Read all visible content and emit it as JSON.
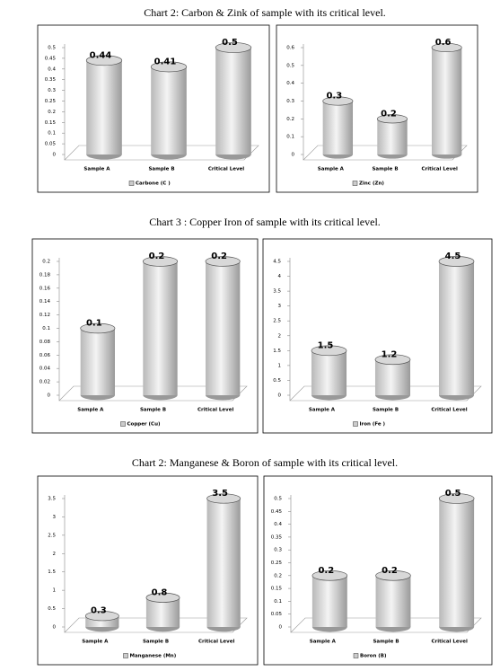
{
  "captions": [
    "Chart 2: Carbon & Zink of sample with its critical level.",
    "Chart 3 : Copper Iron of sample with its critical level.",
    "Chart 2: Manganese & Boron  of sample with its critical level."
  ],
  "chart_data": [
    {
      "type": "bar",
      "categories": [
        "Sample A",
        "Sample B",
        "Critical Level"
      ],
      "series": [
        {
          "name": "Carbone  (C )",
          "values": [
            0.44,
            0.41,
            0.5
          ]
        }
      ],
      "ylim": [
        0,
        0.5
      ],
      "yticks": [
        0,
        0.05,
        0.1,
        0.15,
        0.2,
        0.25,
        0.3,
        0.35,
        0.4,
        0.45,
        0.5
      ]
    },
    {
      "type": "bar",
      "categories": [
        "Sample A",
        "Sample B",
        "Critical Level"
      ],
      "series": [
        {
          "name": "Zinc (Zn)",
          "values": [
            0.3,
            0.2,
            0.6
          ]
        }
      ],
      "ylim": [
        0,
        0.6
      ],
      "yticks": [
        0,
        0.1,
        0.2,
        0.3,
        0.4,
        0.5,
        0.6
      ]
    },
    {
      "type": "bar",
      "categories": [
        "Sample A",
        "Sample B",
        "Critical Level"
      ],
      "series": [
        {
          "name": "Copper (Cu)",
          "values": [
            0.1,
            0.2,
            0.2
          ]
        }
      ],
      "ylim": [
        0,
        0.2
      ],
      "yticks": [
        0,
        0.02,
        0.04,
        0.06,
        0.08,
        0.1,
        0.12,
        0.14,
        0.16,
        0.18,
        0.2
      ]
    },
    {
      "type": "bar",
      "categories": [
        "Sample A",
        "Sample B",
        "Critical Level"
      ],
      "series": [
        {
          "name": "Iron (Fe )",
          "values": [
            1.5,
            1.2,
            4.5
          ]
        }
      ],
      "ylim": [
        0,
        4.5
      ],
      "yticks": [
        0,
        0.5,
        1,
        1.5,
        2,
        2.5,
        3,
        3.5,
        4,
        4.5
      ]
    },
    {
      "type": "bar",
      "categories": [
        "Sample A",
        "Sample B",
        "Critical Level"
      ],
      "series": [
        {
          "name": "Manganese  (Mn)",
          "values": [
            0.3,
            0.8,
            3.5
          ]
        }
      ],
      "ylim": [
        0,
        3.5
      ],
      "yticks": [
        0,
        0.5,
        1,
        1.5,
        2,
        2.5,
        3,
        3.5
      ]
    },
    {
      "type": "bar",
      "categories": [
        "Sample A",
        "Sample B",
        "Critical Level"
      ],
      "series": [
        {
          "name": "Boron (B)",
          "values": [
            0.2,
            0.2,
            0.5
          ]
        }
      ],
      "ylim": [
        0,
        0.5
      ],
      "yticks": [
        0,
        0.05,
        0.1,
        0.15,
        0.2,
        0.25,
        0.3,
        0.35,
        0.4,
        0.45,
        0.5
      ]
    }
  ]
}
